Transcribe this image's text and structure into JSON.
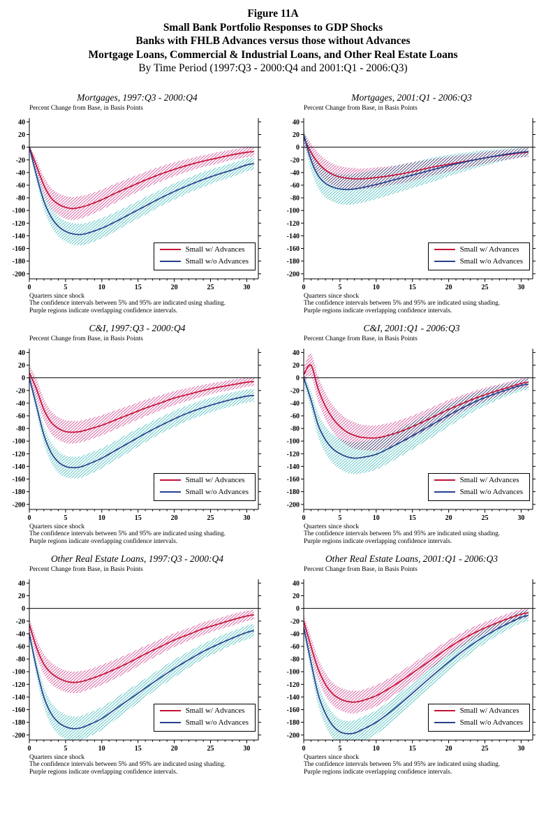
{
  "header": {
    "line1": "Figure 11A",
    "line2": "Small Bank Portfolio Responses to GDP Shocks",
    "line3": "Banks with FHLB Advances versus those without Advances",
    "line4": "Mortgage Loans, Commercial & Industrial Loans, and Other Real Estate Loans",
    "line5": "By Time Period (1997:Q3 - 2000:Q4 and 2001:Q1 - 2006:Q3)"
  },
  "panel_common": {
    "y_axis_label": "Percent Change from Base, in Basis Points",
    "x_axis_label": "Quarters since shock",
    "footnote1": "The confidence intervals between 5% and 95% are indicated using shading.",
    "footnote2": "Purple regions indicate overlapping confidence intervals.",
    "legend": {
      "w_advances": "Small w/ Advances",
      "wo_advances": "Small w/o Advances"
    },
    "yticks": [
      40,
      20,
      0,
      -20,
      -40,
      -60,
      -80,
      -100,
      -120,
      -140,
      -160,
      -180,
      -200
    ],
    "xticks": [
      0,
      5,
      10,
      15,
      20,
      25,
      30
    ],
    "xlim": [
      0,
      31.6
    ],
    "ylim": [
      -208,
      46
    ],
    "grid": "off",
    "legend_position": "lower right (boxed)"
  },
  "colors": {
    "with_advances_line": "#c41236",
    "with_advances_band": "#d75c9f",
    "without_advances_line": "#26418f",
    "without_advances_band": "#5ac3c3",
    "axis": "#000000",
    "background": "#ffffff"
  },
  "chart_data": [
    {
      "type": "line",
      "title": "Mortgages, 1997:Q3 - 2000:Q4",
      "x": [
        0,
        1,
        2,
        3,
        4,
        5,
        6,
        7,
        8,
        10,
        12,
        14,
        16,
        18,
        20,
        22,
        24,
        26,
        28,
        30,
        31
      ],
      "series": [
        {
          "name": "Small w/ Advances",
          "values": [
            0,
            -30,
            -60,
            -80,
            -90,
            -95,
            -97,
            -95,
            -92,
            -83,
            -72,
            -62,
            -52,
            -43,
            -35,
            -28,
            -22,
            -17,
            -12,
            -8,
            -7
          ],
          "band": [
            4,
            10,
            14,
            16,
            17,
            18,
            18,
            18,
            17,
            16,
            15,
            14,
            13,
            12,
            11,
            10,
            9,
            9,
            8,
            8,
            8
          ]
        },
        {
          "name": "Small w/o Advances",
          "values": [
            0,
            -45,
            -85,
            -110,
            -125,
            -133,
            -137,
            -138,
            -136,
            -128,
            -117,
            -105,
            -93,
            -81,
            -70,
            -60,
            -51,
            -43,
            -36,
            -28,
            -26
          ],
          "band": [
            5,
            10,
            13,
            15,
            16,
            16,
            17,
            17,
            17,
            16,
            15,
            14,
            14,
            13,
            13,
            12,
            12,
            11,
            11,
            10,
            10
          ]
        }
      ]
    },
    {
      "type": "line",
      "title": "Mortgages, 2001:Q1 - 2006:Q3",
      "x": [
        0,
        1,
        2,
        3,
        4,
        5,
        6,
        7,
        8,
        10,
        12,
        14,
        16,
        18,
        20,
        22,
        24,
        26,
        28,
        30,
        31
      ],
      "series": [
        {
          "name": "Small w/ Advances",
          "values": [
            15,
            -8,
            -25,
            -36,
            -43,
            -47,
            -49,
            -50,
            -50,
            -48,
            -45,
            -41,
            -36,
            -31,
            -27,
            -23,
            -19,
            -15,
            -12,
            -9,
            -8
          ],
          "band": [
            8,
            14,
            16,
            17,
            17,
            17,
            17,
            17,
            16,
            16,
            15,
            15,
            14,
            13,
            12,
            11,
            10,
            9,
            8,
            7,
            7
          ]
        },
        {
          "name": "Small w/o Advances",
          "values": [
            20,
            -20,
            -45,
            -57,
            -63,
            -66,
            -67,
            -66,
            -64,
            -59,
            -53,
            -47,
            -41,
            -35,
            -29,
            -24,
            -19,
            -15,
            -11,
            -8,
            -7
          ],
          "band": [
            10,
            16,
            20,
            22,
            23,
            24,
            24,
            24,
            24,
            23,
            22,
            21,
            20,
            19,
            17,
            15,
            13,
            11,
            9,
            8,
            8
          ]
        }
      ]
    },
    {
      "type": "line",
      "title": "C&I, 1997:Q3 - 2000:Q4",
      "x": [
        0,
        1,
        2,
        3,
        4,
        5,
        6,
        7,
        8,
        10,
        12,
        14,
        16,
        18,
        20,
        22,
        24,
        26,
        28,
        30,
        31
      ],
      "series": [
        {
          "name": "Small w/ Advances",
          "values": [
            8,
            -18,
            -50,
            -70,
            -80,
            -85,
            -86,
            -85,
            -82,
            -75,
            -66,
            -57,
            -48,
            -40,
            -32,
            -26,
            -20,
            -15,
            -11,
            -7,
            -6
          ],
          "band": [
            12,
            16,
            17,
            18,
            18,
            18,
            18,
            17,
            17,
            16,
            15,
            14,
            13,
            12,
            11,
            10,
            9,
            8,
            8,
            7,
            7
          ]
        },
        {
          "name": "Small w/o Advances",
          "values": [
            0,
            -45,
            -90,
            -118,
            -133,
            -140,
            -142,
            -141,
            -137,
            -127,
            -114,
            -101,
            -88,
            -76,
            -65,
            -55,
            -47,
            -40,
            -34,
            -29,
            -28
          ],
          "band": [
            6,
            11,
            14,
            16,
            17,
            17,
            17,
            17,
            17,
            16,
            15,
            15,
            14,
            13,
            13,
            12,
            12,
            11,
            11,
            10,
            10
          ]
        }
      ]
    },
    {
      "type": "line",
      "title": "C&I, 2001:Q1 - 2006:Q3",
      "x": [
        0,
        1,
        2,
        3,
        4,
        5,
        6,
        7,
        8,
        10,
        12,
        14,
        16,
        18,
        20,
        22,
        24,
        26,
        28,
        30,
        31
      ],
      "series": [
        {
          "name": "Small w/ Advances",
          "values": [
            5,
            20,
            -18,
            -45,
            -64,
            -77,
            -86,
            -91,
            -94,
            -95,
            -90,
            -82,
            -72,
            -61,
            -50,
            -40,
            -31,
            -23,
            -16,
            -9,
            -7
          ],
          "band": [
            12,
            18,
            20,
            21,
            21,
            21,
            21,
            21,
            20,
            20,
            19,
            18,
            17,
            16,
            15,
            13,
            12,
            10,
            9,
            8,
            8
          ]
        },
        {
          "name": "Small w/o Advances",
          "values": [
            0,
            -35,
            -75,
            -98,
            -112,
            -120,
            -125,
            -127,
            -126,
            -121,
            -110,
            -98,
            -85,
            -72,
            -59,
            -47,
            -36,
            -27,
            -19,
            -12,
            -10
          ],
          "band": [
            8,
            14,
            18,
            21,
            23,
            24,
            25,
            25,
            25,
            24,
            23,
            22,
            21,
            20,
            18,
            16,
            14,
            12,
            10,
            9,
            9
          ]
        }
      ]
    },
    {
      "type": "line",
      "title": "Other Real Estate Loans, 1997:Q3 - 2000:Q4",
      "x": [
        0,
        1,
        2,
        3,
        4,
        5,
        6,
        7,
        8,
        10,
        12,
        14,
        16,
        18,
        20,
        22,
        24,
        26,
        28,
        30,
        31
      ],
      "series": [
        {
          "name": "Small w/ Advances",
          "values": [
            -25,
            -62,
            -88,
            -102,
            -110,
            -115,
            -117,
            -116,
            -113,
            -105,
            -95,
            -84,
            -72,
            -61,
            -50,
            -41,
            -32,
            -25,
            -18,
            -12,
            -10
          ],
          "band": [
            10,
            14,
            16,
            17,
            17,
            17,
            17,
            17,
            16,
            16,
            15,
            14,
            13,
            12,
            11,
            10,
            10,
            9,
            9,
            8,
            8
          ]
        },
        {
          "name": "Small w/o Advances",
          "values": [
            -40,
            -95,
            -140,
            -166,
            -180,
            -187,
            -190,
            -189,
            -185,
            -174,
            -158,
            -142,
            -126,
            -110,
            -95,
            -81,
            -68,
            -57,
            -47,
            -38,
            -35
          ],
          "band": [
            8,
            13,
            16,
            18,
            19,
            19,
            19,
            19,
            19,
            18,
            17,
            16,
            15,
            14,
            14,
            13,
            12,
            12,
            11,
            11,
            10
          ]
        }
      ]
    },
    {
      "type": "line",
      "title": "Other Real Estate Loans, 2001:Q1 - 2006:Q3",
      "x": [
        0,
        1,
        2,
        3,
        4,
        5,
        6,
        7,
        8,
        10,
        12,
        14,
        16,
        18,
        20,
        22,
        24,
        26,
        28,
        30,
        31
      ],
      "series": [
        {
          "name": "Small w/ Advances",
          "values": [
            -20,
            -60,
            -96,
            -120,
            -135,
            -143,
            -147,
            -148,
            -146,
            -138,
            -125,
            -110,
            -94,
            -78,
            -62,
            -48,
            -36,
            -26,
            -17,
            -9,
            -7
          ],
          "band": [
            10,
            15,
            17,
            18,
            18,
            18,
            18,
            18,
            17,
            17,
            16,
            15,
            14,
            13,
            12,
            11,
            10,
            9,
            8,
            8,
            7
          ]
        },
        {
          "name": "Small w/o Advances",
          "values": [
            -30,
            -85,
            -136,
            -166,
            -185,
            -195,
            -198,
            -197,
            -192,
            -180,
            -163,
            -144,
            -124,
            -104,
            -85,
            -67,
            -51,
            -37,
            -25,
            -14,
            -11
          ],
          "band": [
            8,
            14,
            17,
            19,
            20,
            20,
            20,
            20,
            20,
            19,
            18,
            17,
            16,
            15,
            14,
            13,
            12,
            11,
            10,
            9,
            9
          ]
        }
      ]
    }
  ]
}
